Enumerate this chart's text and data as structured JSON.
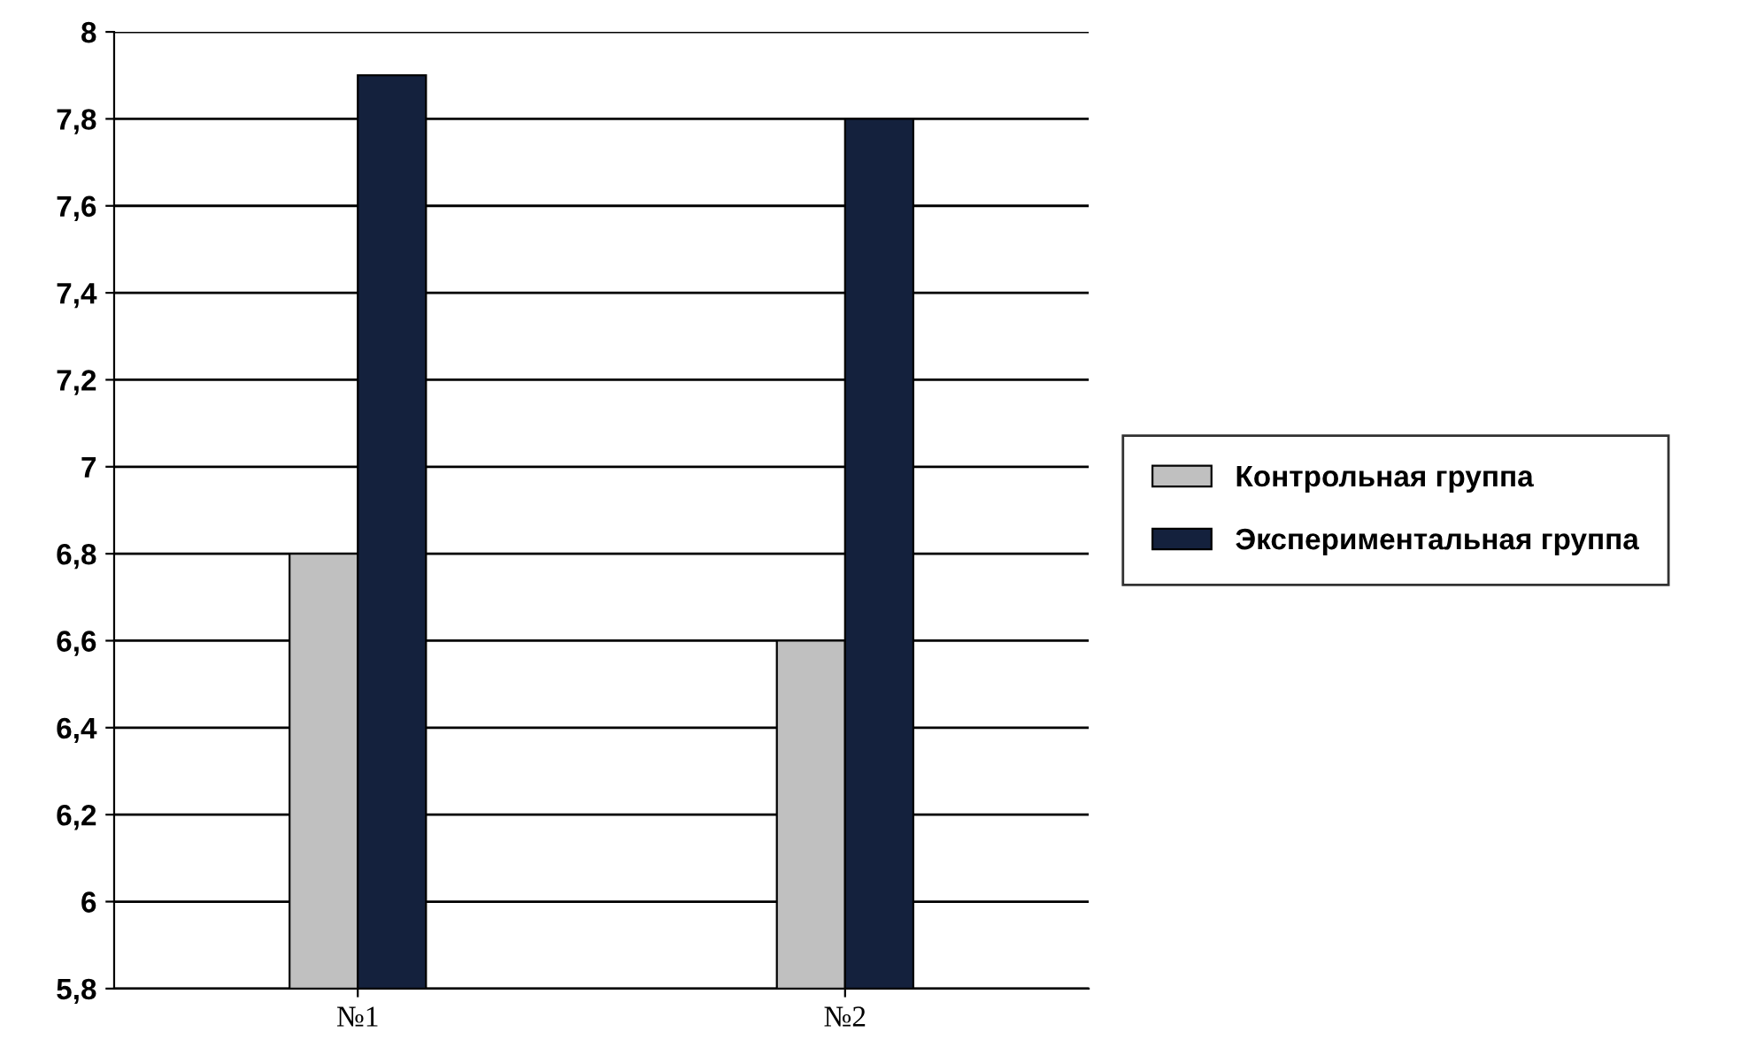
{
  "chart_data": {
    "type": "bar",
    "categories": [
      "№1",
      "№2"
    ],
    "series": [
      {
        "name": "Контрольная группа",
        "color": "#c0c0c0",
        "values": [
          6.8,
          6.6
        ]
      },
      {
        "name": "Экспериментальная группа",
        "color": "#14213d",
        "values": [
          7.9,
          7.8
        ]
      }
    ],
    "ylim": [
      5.8,
      8
    ],
    "yticks": [
      {
        "value": 5.8,
        "label": "5,8"
      },
      6,
      {
        "value": 6.2,
        "label": "6,2"
      },
      {
        "value": 6.4,
        "label": "6,4"
      },
      {
        "value": 6.6,
        "label": "6,6"
      },
      {
        "value": 6.8,
        "label": "6,8"
      },
      7,
      {
        "value": 7.2,
        "label": "7,2"
      },
      {
        "value": 7.4,
        "label": "7,4"
      },
      {
        "value": 7.6,
        "label": "7,6"
      },
      {
        "value": 7.8,
        "label": "7,8"
      },
      8
    ],
    "grid": "y",
    "legend": "right"
  }
}
